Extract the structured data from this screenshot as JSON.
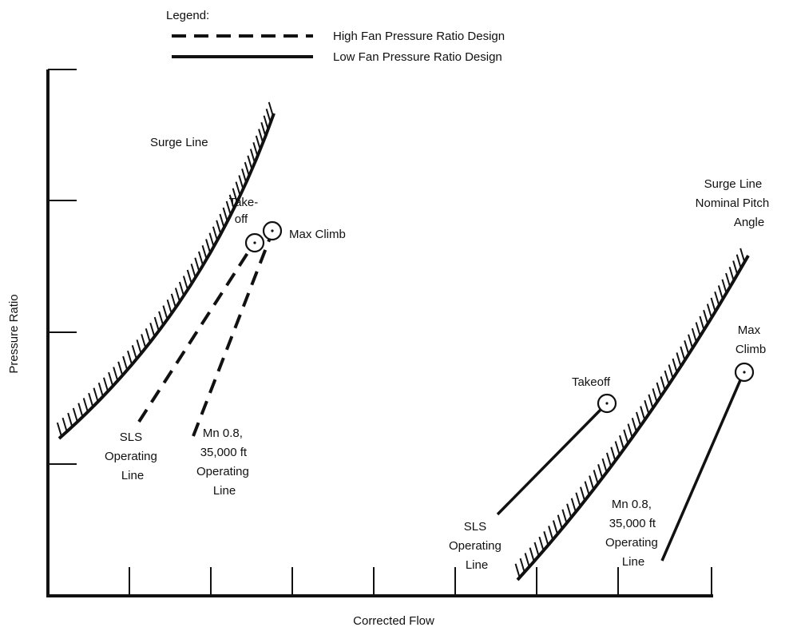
{
  "legend": {
    "title": "Legend:",
    "high_label": "High Fan Pressure Ratio Design",
    "low_label": "Low Fan Pressure Ratio Design"
  },
  "axes": {
    "xlabel": "Corrected Flow",
    "ylabel": "Pressure Ratio"
  },
  "high_design": {
    "surge_line_label": "Surge Line",
    "takeoff_label": [
      "Take-",
      "off"
    ],
    "max_climb_label": "Max Climb",
    "sls_label": [
      "SLS",
      "Operating",
      "Line"
    ],
    "cruise_label": [
      "Mn 0.8,",
      "35,000 ft",
      "Operating",
      "Line"
    ]
  },
  "low_design": {
    "surge_line_label": [
      "Surge Line",
      "Nominal Pitch",
      "Angle"
    ],
    "takeoff_label": "Takeoff",
    "max_climb_label": [
      "Max",
      "Climb"
    ],
    "sls_label": [
      "SLS",
      "Operating",
      "Line"
    ],
    "cruise_label": [
      "Mn 0.8,",
      "35,000 ft",
      "Operating",
      "Line"
    ]
  }
}
